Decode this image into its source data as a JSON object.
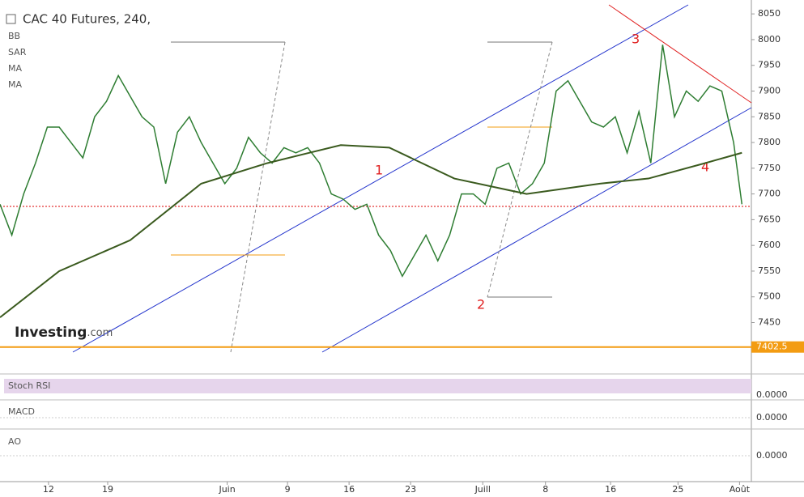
{
  "chart_data": {
    "type": "line",
    "title": "CAC 40 Futures, 240,",
    "indicators": [
      "BB",
      "SAR",
      "MA",
      "MA"
    ],
    "brand": "Investing",
    "brand_suffix": ".com",
    "wave_labels": [
      "1",
      "2",
      "3",
      "4"
    ],
    "x": [
      0,
      1,
      2,
      3,
      4,
      5,
      6,
      7,
      8,
      9,
      10,
      11,
      12,
      13,
      14,
      15,
      16,
      17,
      18,
      19,
      20,
      21,
      22,
      23,
      24,
      25,
      26,
      27,
      28,
      29,
      30,
      31,
      32,
      33,
      34,
      35,
      36,
      37,
      38,
      39,
      40,
      41,
      42,
      43,
      44,
      45,
      46,
      47,
      48,
      49,
      50,
      51,
      52,
      53,
      54,
      55,
      56,
      57,
      58,
      59,
      60,
      61,
      62,
      62.7
    ],
    "series": [
      {
        "name": "CAC 40 Futures",
        "color": "#2e7d32",
        "values": [
          7680,
          7620,
          7700,
          7760,
          7830,
          7830,
          7800,
          7770,
          7850,
          7880,
          7930,
          7890,
          7850,
          7830,
          7720,
          7820,
          7850,
          7800,
          7760,
          7720,
          7750,
          7810,
          7780,
          7760,
          7790,
          7780,
          7790,
          7760,
          7700,
          7690,
          7670,
          7680,
          7620,
          7590,
          7540,
          7580,
          7620,
          7570,
          7620,
          7700,
          7700,
          7680,
          7750,
          7760,
          7700,
          7720,
          7760,
          7900,
          7920,
          7880,
          7840,
          7830,
          7850,
          7780,
          7860,
          7760,
          7990,
          7850,
          7900,
          7880,
          7910,
          7900,
          7800,
          7680
        ]
      }
    ],
    "ma_x": [
      0,
      5,
      11,
      17,
      22.6,
      28.8,
      32.9,
      38.4,
      44.5,
      50.7,
      54.8,
      59.6,
      62.7
    ],
    "ma_values": [
      7460,
      7550,
      7610,
      7720,
      7760,
      7795,
      7790,
      7730,
      7700,
      7720,
      7730,
      7760,
      7780
    ],
    "ma_color": "#3a5a1e",
    "level": 7402.5,
    "level_color": "#f39c12",
    "xlim": [
      0,
      63.5
    ],
    "xticks": [
      {
        "value": 4.1,
        "label": "12"
      },
      {
        "value": 9.1,
        "label": "19"
      },
      {
        "value": 19.2,
        "label": "Juin"
      },
      {
        "value": 24.3,
        "label": "9"
      },
      {
        "value": 29.5,
        "label": "16"
      },
      {
        "value": 34.7,
        "label": "23"
      },
      {
        "value": 40.8,
        "label": "Juill"
      },
      {
        "value": 46.1,
        "label": "8"
      },
      {
        "value": 51.6,
        "label": "16"
      },
      {
        "value": 57.3,
        "label": "25"
      },
      {
        "value": 62.5,
        "label": "Août"
      }
    ],
    "ylim": [
      7391,
      8077
    ],
    "yticks": [
      8050,
      8000,
      7950,
      7900,
      7850,
      7800,
      7750,
      7700,
      7650,
      7600,
      7550,
      7500,
      7450
    ],
    "subpanels": [
      {
        "name": "Stoch RSI",
        "zero": "0.0000"
      },
      {
        "name": "MACD",
        "zero": "0.0000"
      },
      {
        "name": "AO",
        "zero": "0.0000"
      }
    ]
  }
}
